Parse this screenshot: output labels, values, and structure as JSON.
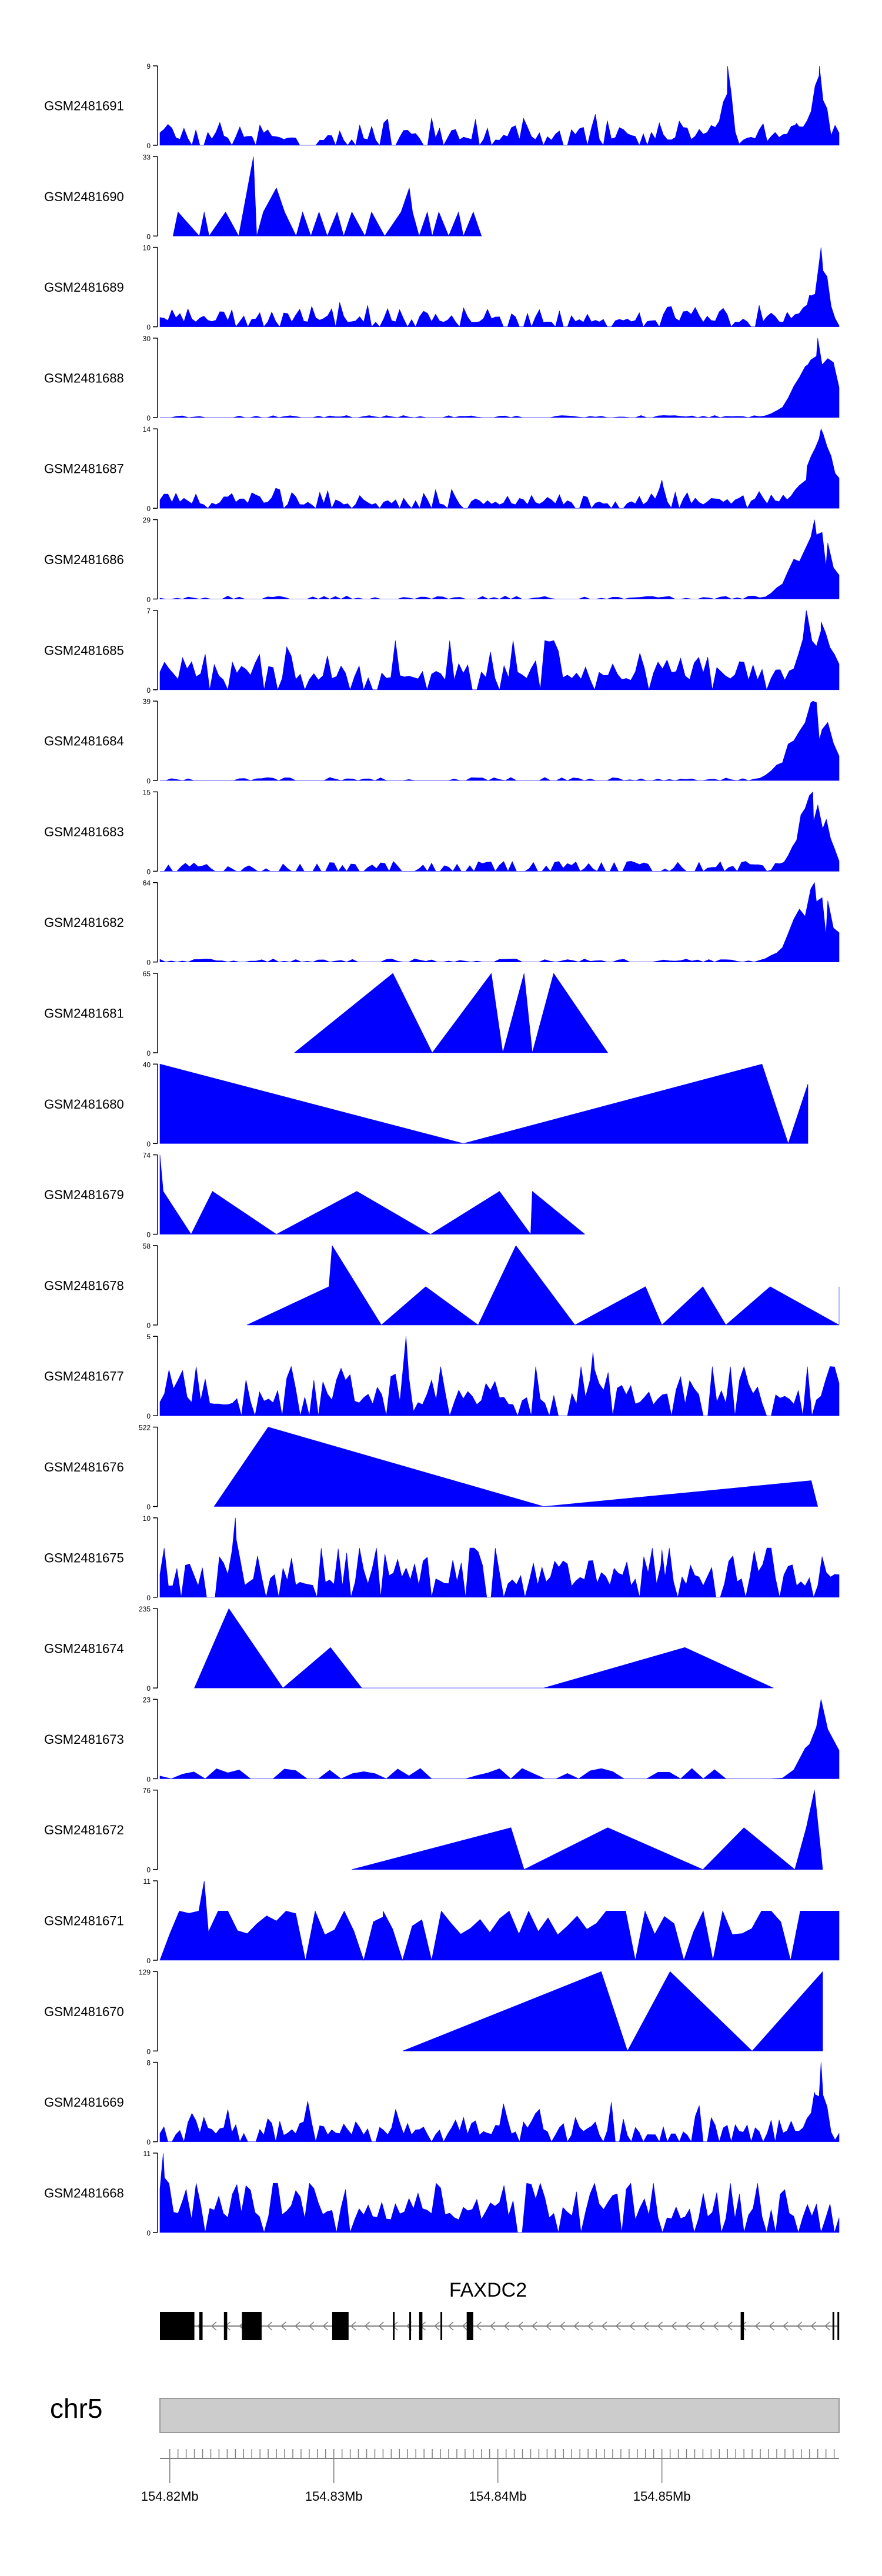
{
  "chart_data": {
    "type": "area",
    "title": "",
    "xlabel": "",
    "ylabel": "",
    "xlim": [
      154.8154,
      154.8568
    ],
    "fill_color": "#0000FF",
    "ymin_label": "0",
    "tracks": [
      {
        "name": "GSM2481691",
        "ymax_label": "9",
        "ymax": 9,
        "shape": "dense",
        "density": 170,
        "base": 0.16,
        "peaks": [
          [
            154.85,
            9.0,
            0.00025
          ],
          [
            154.8556,
            9.0,
            0.0004
          ],
          [
            154.8542,
            2.5,
            0.001
          ]
        ],
        "x": [],
        "y": []
      },
      {
        "name": "GSM2481690",
        "ymax_label": "33",
        "ymax": 33,
        "shape": "sparse",
        "x": [
          154.8162,
          154.8165,
          154.8178,
          154.8181,
          154.8184,
          154.8194,
          154.8202,
          154.8211,
          154.8213,
          154.8217,
          154.8225,
          154.823,
          154.8237,
          154.8241,
          154.8246,
          154.8251,
          154.8256,
          154.8262,
          154.8266,
          154.8271,
          154.8279,
          154.8283,
          154.8291,
          154.8301,
          154.8306,
          154.8308,
          154.8312,
          154.8317,
          154.832,
          154.8324,
          154.833,
          154.8336,
          154.8339,
          154.8345,
          154.835
        ],
        "y": [
          0,
          10,
          0,
          10,
          0,
          10,
          0,
          33,
          0,
          10,
          20,
          10,
          0,
          10,
          0,
          10,
          0,
          10,
          0,
          10,
          0,
          10,
          0,
          10,
          20,
          10,
          0,
          10,
          0,
          10,
          0,
          10,
          0,
          10,
          0
        ]
      },
      {
        "name": "GSM2481689",
        "ymax_label": "10",
        "ymax": 10,
        "shape": "dense",
        "density": 170,
        "base": 0.14,
        "peaks": [
          [
            154.8557,
            10.0,
            0.0004
          ],
          [
            154.855,
            4.0,
            0.0007
          ]
        ],
        "x": [],
        "y": []
      },
      {
        "name": "GSM2481688",
        "ymax_label": "30",
        "ymax": 30,
        "shape": "low",
        "density": 120,
        "base": 0.02,
        "peaks": [
          [
            154.8555,
            30.0,
            0.0012
          ],
          [
            154.8549,
            20.0,
            0.0006
          ]
        ],
        "x": [],
        "y": []
      },
      {
        "name": "GSM2481687",
        "ymax_label": "14",
        "ymax": 14,
        "shape": "dense",
        "density": 170,
        "base": 0.11,
        "peaks": [
          [
            154.8557,
            14.0,
            0.0008
          ],
          [
            154.8548,
            5.0,
            0.0008
          ],
          [
            154.846,
            5.0,
            0.0002
          ]
        ],
        "x": [],
        "y": []
      },
      {
        "name": "GSM2481686",
        "ymax_label": "29",
        "ymax": 29,
        "shape": "low",
        "density": 120,
        "base": 0.03,
        "peaks": [
          [
            154.8553,
            29.0,
            0.0012
          ],
          [
            154.856,
            12.0,
            0.0005
          ]
        ],
        "x": [],
        "y": []
      },
      {
        "name": "GSM2481685",
        "ymax_label": "7",
        "ymax": 7,
        "shape": "dense",
        "density": 150,
        "base": 0.3,
        "peaks": [
          [
            154.8548,
            7.0,
            0.0005
          ],
          [
            154.8557,
            6.0,
            0.0008
          ]
        ],
        "x": [],
        "y": []
      },
      {
        "name": "GSM2481684",
        "ymax_label": "39",
        "ymax": 39,
        "shape": "low",
        "density": 120,
        "base": 0.03,
        "peaks": [
          [
            154.8552,
            39.0,
            0.0013
          ],
          [
            154.8556,
            20.0,
            0.0008
          ]
        ],
        "x": [],
        "y": []
      },
      {
        "name": "GSM2481683",
        "ymax_label": "15",
        "ymax": 15,
        "shape": "low",
        "density": 160,
        "base": 0.1,
        "peaks": [
          [
            154.8552,
            15.0,
            0.0009
          ],
          [
            154.8558,
            8.0,
            0.0007
          ]
        ],
        "x": [],
        "y": []
      },
      {
        "name": "GSM2481682",
        "ymax_label": "64",
        "ymax": 64,
        "shape": "low",
        "density": 120,
        "base": 0.03,
        "peaks": [
          [
            154.8553,
            64.0,
            0.0012
          ],
          [
            154.856,
            22.0,
            0.0006
          ]
        ],
        "x": [],
        "y": []
      },
      {
        "name": "GSM2481681",
        "ymax_label": "65",
        "ymax": 65,
        "shape": "sparse",
        "x": [
          154.8236,
          154.8296,
          154.832,
          154.8356,
          154.8363,
          154.8376,
          154.8381,
          154.8394,
          154.8427
        ],
        "y": [
          0,
          65,
          0,
          65,
          0,
          65,
          0,
          65,
          0
        ]
      },
      {
        "name": "GSM2481680",
        "ymax_label": "40",
        "ymax": 40,
        "shape": "sparse",
        "x": [
          154.8154,
          154.8154,
          154.8339,
          154.8521,
          154.8537,
          154.8549,
          154.8549
        ],
        "y": [
          0,
          40,
          0,
          40,
          0,
          30,
          0
        ]
      },
      {
        "name": "GSM2481679",
        "ymax_label": "74",
        "ymax": 74,
        "shape": "sparse",
        "x": [
          154.8154,
          154.8154,
          154.8156,
          154.8173,
          154.8186,
          154.8225,
          154.8274,
          154.8319,
          154.8361,
          154.838,
          154.8381,
          154.8413
        ],
        "y": [
          0,
          74,
          40,
          0,
          40,
          0,
          40,
          0,
          40,
          0,
          40,
          0
        ]
      },
      {
        "name": "GSM2481678",
        "ymax_label": "58",
        "ymax": 58,
        "shape": "sparse",
        "x": [
          154.8207,
          154.8257,
          154.8259,
          154.8289,
          154.8316,
          154.8348,
          154.8371,
          154.8407,
          154.845,
          154.846,
          154.8485,
          154.8499,
          154.8526,
          154.8568,
          154.8568
        ],
        "y": [
          0,
          28,
          58,
          0,
          28,
          0,
          58,
          0,
          28,
          0,
          28,
          0,
          28,
          0,
          28
        ]
      },
      {
        "name": "GSM2481677",
        "ymax_label": "5",
        "ymax": 5,
        "shape": "dense",
        "density": 150,
        "base": 0.35,
        "peaks": [
          [
            154.8304,
            5.0,
            0.0002
          ],
          [
            154.8418,
            4.0,
            0.0002
          ]
        ],
        "x": [],
        "y": []
      },
      {
        "name": "GSM2481676",
        "ymax_label": "522",
        "ymax": 522,
        "shape": "sparse",
        "x": [
          154.8187,
          154.822,
          154.8388,
          154.8551,
          154.8555
        ],
        "y": [
          0,
          522,
          0,
          170,
          0
        ]
      },
      {
        "name": "GSM2481675",
        "ymax_label": "10",
        "ymax": 10,
        "shape": "dense",
        "density": 160,
        "base": 0.35,
        "peaks": [
          [
            154.82,
            10.0,
            0.0002
          ],
          [
            154.846,
            6.0,
            0.0002
          ]
        ],
        "x": [],
        "y": []
      },
      {
        "name": "GSM2481674",
        "ymax_label": "235",
        "ymax": 235,
        "shape": "sparse",
        "x": [
          154.8175,
          154.8196,
          154.8229,
          154.8258,
          154.8277,
          154.8388,
          154.8474,
          154.8528
        ],
        "y": [
          0,
          235,
          0,
          120,
          0,
          0,
          120,
          0
        ]
      },
      {
        "name": "GSM2481673",
        "ymax_label": "23",
        "ymax": 23,
        "shape": "low",
        "density": 60,
        "base": 0.1,
        "peaks": [
          [
            154.8557,
            23.0,
            0.0008
          ],
          [
            154.855,
            10.0,
            0.0006
          ]
        ],
        "x": [],
        "y": []
      },
      {
        "name": "GSM2481672",
        "ymax_label": "76",
        "ymax": 76,
        "shape": "sparse",
        "x": [
          154.8271,
          154.8368,
          154.8376,
          154.8427,
          154.8485,
          154.851,
          154.8541,
          154.8548,
          154.8553,
          154.8558
        ],
        "y": [
          0,
          40,
          0,
          40,
          0,
          40,
          0,
          40,
          76,
          0
        ]
      },
      {
        "name": "GSM2481671",
        "ymax_label": "11",
        "ymax": 11,
        "shape": "dense",
        "density": 70,
        "base": 0.8,
        "peaks": [
          [
            154.8181,
            11.0,
            0.0002
          ],
          [
            154.829,
            6.0,
            0.0002
          ]
        ],
        "x": [],
        "y": []
      },
      {
        "name": "GSM2481670",
        "ymax_label": "129",
        "ymax": 129,
        "shape": "sparse",
        "x": [
          154.8302,
          154.8423,
          154.8439,
          154.8465,
          154.8515,
          154.8558,
          154.8558
        ],
        "y": [
          0,
          129,
          0,
          129,
          0,
          129,
          0
        ]
      },
      {
        "name": "GSM2481669",
        "ymax_label": "8",
        "ymax": 8,
        "shape": "dense",
        "density": 170,
        "base": 0.2,
        "peaks": [
          [
            154.8557,
            8.0,
            0.0003
          ],
          [
            154.8553,
            5.0,
            0.0005
          ]
        ],
        "x": [],
        "y": []
      },
      {
        "name": "GSM2481668",
        "ymax_label": "11",
        "ymax": 11,
        "shape": "dense",
        "density": 150,
        "base": 0.4,
        "peaks": [
          [
            154.8156,
            11.0,
            0.0002
          ],
          [
            154.817,
            6.0,
            0.0002
          ]
        ],
        "x": [],
        "y": []
      }
    ],
    "gene": {
      "name": "FAXDC2",
      "strand": "-",
      "intron_start": 154.8154,
      "intron_end": 154.8568,
      "exons": [
        [
          154.8154,
          154.8175
        ],
        [
          154.8178,
          154.818
        ],
        [
          154.8193,
          154.8195
        ],
        [
          154.8204,
          154.8216
        ],
        [
          154.8259,
          154.8269
        ],
        [
          154.8296,
          154.8297
        ],
        [
          154.8306,
          154.8307
        ],
        [
          154.8312,
          154.8314
        ],
        [
          154.8325,
          154.8326
        ],
        [
          154.8341,
          154.8345
        ],
        [
          154.8508,
          154.851
        ],
        [
          154.8564,
          154.8565
        ],
        [
          154.8567,
          154.8568
        ]
      ]
    },
    "chromosome": {
      "name": "chr5",
      "ticks": [
        154.816,
        154.8165,
        154.817,
        154.8175,
        154.818,
        154.8185,
        154.819,
        154.8195,
        154.82,
        154.8205,
        154.821,
        154.8215,
        154.822,
        154.8225,
        154.823,
        154.8235,
        154.824,
        154.8245,
        154.825,
        154.8255,
        154.826,
        154.8265,
        154.827,
        154.8275,
        154.828,
        154.8285,
        154.829,
        154.8295,
        154.83,
        154.8305,
        154.831,
        154.8315,
        154.832,
        154.8325,
        154.833,
        154.8335,
        154.834,
        154.8345,
        154.835,
        154.8355,
        154.836,
        154.8365,
        154.837,
        154.8375,
        154.838,
        154.8385,
        154.839,
        154.8395,
        154.84,
        154.8405,
        154.841,
        154.8415,
        154.842,
        154.8425,
        154.843,
        154.8435,
        154.844,
        154.8445,
        154.845,
        154.8455,
        154.846,
        154.8465,
        154.847,
        154.8475,
        154.848,
        154.8485,
        154.849,
        154.8495,
        154.85,
        154.8505,
        154.851,
        154.8515,
        154.852,
        154.8525,
        154.853,
        154.8535,
        154.854,
        154.8545,
        154.855,
        154.8555,
        154.856,
        154.8565
      ],
      "major_ticks": [
        154.816,
        154.826,
        154.836,
        154.846
      ],
      "tick_labels": [
        "154.82Mb",
        "154.83Mb",
        "154.84Mb",
        "154.85Mb"
      ]
    }
  }
}
